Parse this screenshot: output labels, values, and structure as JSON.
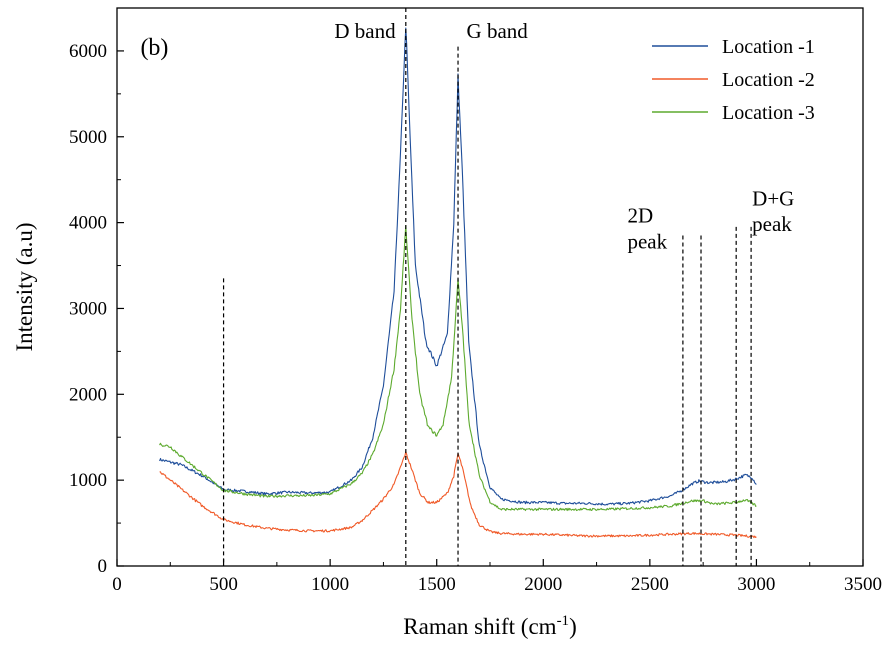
{
  "chart_data": {
    "type": "line",
    "panel_label": "(b)",
    "xlabel": "Raman shift (cm",
    "xlabel_sup": "-1",
    "xlabel_tail": ")",
    "ylabel": "Intensity (a.u)",
    "xlim": [
      0,
      3500
    ],
    "ylim": [
      0,
      6500
    ],
    "xticks": [
      0,
      500,
      1000,
      1500,
      2000,
      2500,
      3000,
      3500
    ],
    "yticks": [
      0,
      1000,
      2000,
      3000,
      4000,
      5000,
      6000
    ],
    "legend_position": "top-right",
    "series": [
      {
        "name": "Location -1",
        "color": "#1f4e9a",
        "points": [
          [
            200,
            1240
          ],
          [
            300,
            1180
          ],
          [
            400,
            1050
          ],
          [
            500,
            890
          ],
          [
            600,
            870
          ],
          [
            700,
            840
          ],
          [
            800,
            860
          ],
          [
            900,
            850
          ],
          [
            1000,
            860
          ],
          [
            1100,
            1000
          ],
          [
            1150,
            1150
          ],
          [
            1200,
            1500
          ],
          [
            1250,
            2100
          ],
          [
            1300,
            3200
          ],
          [
            1330,
            4800
          ],
          [
            1355,
            6300
          ],
          [
            1375,
            5000
          ],
          [
            1400,
            3500
          ],
          [
            1450,
            2600
          ],
          [
            1500,
            2330
          ],
          [
            1550,
            2700
          ],
          [
            1580,
            4000
          ],
          [
            1600,
            5700
          ],
          [
            1620,
            4600
          ],
          [
            1650,
            2600
          ],
          [
            1700,
            1400
          ],
          [
            1750,
            920
          ],
          [
            1800,
            780
          ],
          [
            1900,
            740
          ],
          [
            2000,
            740
          ],
          [
            2100,
            730
          ],
          [
            2200,
            730
          ],
          [
            2300,
            720
          ],
          [
            2400,
            730
          ],
          [
            2500,
            760
          ],
          [
            2600,
            820
          ],
          [
            2650,
            880
          ],
          [
            2700,
            960
          ],
          [
            2730,
            990
          ],
          [
            2780,
            970
          ],
          [
            2850,
            980
          ],
          [
            2900,
            1010
          ],
          [
            2950,
            1060
          ],
          [
            2980,
            1030
          ],
          [
            3000,
            950
          ]
        ]
      },
      {
        "name": "Location -2",
        "color": "#f05a28",
        "points": [
          [
            200,
            1100
          ],
          [
            250,
            1000
          ],
          [
            300,
            900
          ],
          [
            400,
            700
          ],
          [
            500,
            540
          ],
          [
            600,
            480
          ],
          [
            700,
            440
          ],
          [
            800,
            420
          ],
          [
            900,
            410
          ],
          [
            1000,
            410
          ],
          [
            1100,
            450
          ],
          [
            1150,
            530
          ],
          [
            1200,
            650
          ],
          [
            1250,
            780
          ],
          [
            1300,
            950
          ],
          [
            1330,
            1150
          ],
          [
            1355,
            1320
          ],
          [
            1380,
            1150
          ],
          [
            1420,
            850
          ],
          [
            1460,
            740
          ],
          [
            1500,
            740
          ],
          [
            1550,
            850
          ],
          [
            1580,
            1050
          ],
          [
            1600,
            1310
          ],
          [
            1620,
            1150
          ],
          [
            1660,
            700
          ],
          [
            1700,
            480
          ],
          [
            1750,
            400
          ],
          [
            1800,
            380
          ],
          [
            1900,
            370
          ],
          [
            2000,
            370
          ],
          [
            2100,
            360
          ],
          [
            2200,
            350
          ],
          [
            2300,
            350
          ],
          [
            2400,
            350
          ],
          [
            2500,
            360
          ],
          [
            2600,
            370
          ],
          [
            2700,
            380
          ],
          [
            2800,
            370
          ],
          [
            2900,
            360
          ],
          [
            3000,
            340
          ]
        ]
      },
      {
        "name": "Location -3",
        "color": "#5daa2e",
        "points": [
          [
            200,
            1420
          ],
          [
            250,
            1390
          ],
          [
            300,
            1280
          ],
          [
            400,
            1080
          ],
          [
            500,
            880
          ],
          [
            600,
            840
          ],
          [
            700,
            810
          ],
          [
            800,
            820
          ],
          [
            900,
            820
          ],
          [
            1000,
            840
          ],
          [
            1100,
            960
          ],
          [
            1150,
            1080
          ],
          [
            1200,
            1300
          ],
          [
            1250,
            1650
          ],
          [
            1300,
            2300
          ],
          [
            1330,
            3000
          ],
          [
            1355,
            3950
          ],
          [
            1380,
            3000
          ],
          [
            1420,
            2000
          ],
          [
            1460,
            1620
          ],
          [
            1500,
            1520
          ],
          [
            1530,
            1650
          ],
          [
            1570,
            2200
          ],
          [
            1600,
            3330
          ],
          [
            1620,
            2800
          ],
          [
            1650,
            1700
          ],
          [
            1700,
            1050
          ],
          [
            1750,
            750
          ],
          [
            1800,
            660
          ],
          [
            1900,
            660
          ],
          [
            2000,
            660
          ],
          [
            2100,
            660
          ],
          [
            2200,
            660
          ],
          [
            2300,
            660
          ],
          [
            2400,
            670
          ],
          [
            2500,
            680
          ],
          [
            2600,
            700
          ],
          [
            2700,
            760
          ],
          [
            2750,
            760
          ],
          [
            2800,
            720
          ],
          [
            2900,
            740
          ],
          [
            2950,
            770
          ],
          [
            3000,
            700
          ]
        ]
      }
    ],
    "reference_lines": [
      {
        "x": 500,
        "y_top": 3350
      },
      {
        "x": 1355,
        "y_top": 6500
      },
      {
        "x": 1600,
        "y_top": 6050
      },
      {
        "x": 2655,
        "y_top": 3850
      },
      {
        "x": 2740,
        "y_top": 3850
      },
      {
        "x": 2905,
        "y_top": 3950
      },
      {
        "x": 2975,
        "y_top": 3950
      }
    ],
    "annotations": [
      {
        "text": "D band",
        "x": 1020,
        "y": 6150
      },
      {
        "text": "G band",
        "x": 1640,
        "y": 6150
      },
      {
        "text": "2D",
        "x": 2395,
        "y": 4000
      },
      {
        "text": "peak",
        "x": 2395,
        "y": 3700
      },
      {
        "text": "D+G",
        "x": 2980,
        "y": 4200
      },
      {
        "text": "peak",
        "x": 2980,
        "y": 3900
      }
    ]
  }
}
